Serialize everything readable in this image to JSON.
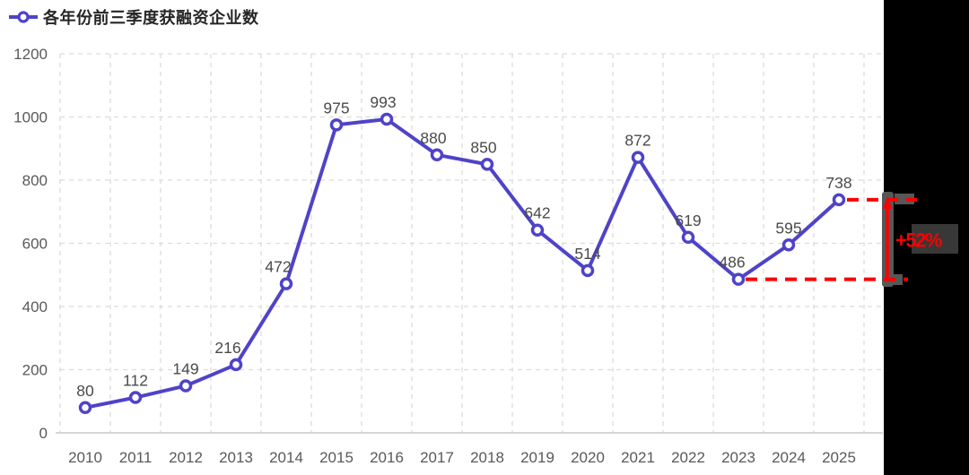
{
  "legend": {
    "label": "各年份前三季度获融资企业数"
  },
  "colors": {
    "line": "#4f43c8",
    "marker_fill": "#ffffff",
    "data_label": "#4a4a4a",
    "axis_text": "#595959",
    "grid": "#dcdcdc",
    "axis_line": "#c8c8c8",
    "annotation": "#fb0000",
    "overlay": "#000000",
    "overlay_bar": "#575757",
    "overlay_smudge": "#383838",
    "legend_text": "#262626"
  },
  "chart_data": {
    "type": "line",
    "title": "各年份前三季度获融资企业数",
    "categories": [
      "2010",
      "2011",
      "2012",
      "2013",
      "2014",
      "2015",
      "2016",
      "2017",
      "2018",
      "2019",
      "2020",
      "2021",
      "2022",
      "2023",
      "2024",
      "2025"
    ],
    "values": [
      80,
      112,
      149,
      216,
      472,
      975,
      993,
      880,
      850,
      642,
      514,
      872,
      619,
      486,
      595,
      738
    ],
    "xlabel": "",
    "ylabel": "",
    "ylim": [
      0,
      1200
    ],
    "yticks": [
      0,
      200,
      400,
      600,
      800,
      1000,
      1200
    ],
    "grid": true,
    "grid_style": "dashed",
    "marker": "open-circle",
    "legend_position": "top-left"
  },
  "annotation": {
    "label": "+52%",
    "from": {
      "year": "2023",
      "value": 486
    },
    "to": {
      "year": "2025",
      "value": 738
    },
    "style": "red-dashed-bracket"
  }
}
